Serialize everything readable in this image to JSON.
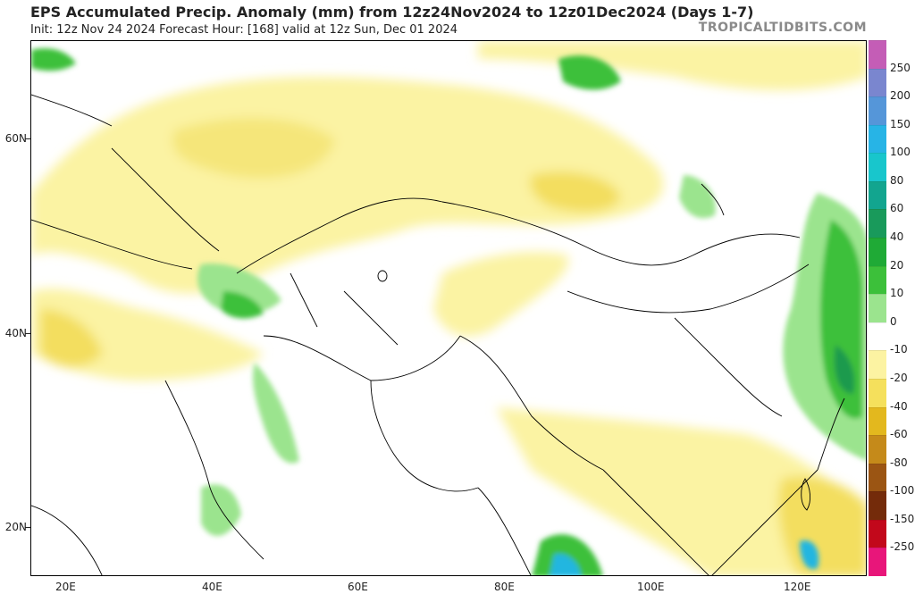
{
  "header": {
    "title": "EPS Accumulated Precip. Anomaly (mm) from 12z24Nov2024 to 12z01Dec2024 (Days 1-7)",
    "subtitle": "Init: 12z Nov 24 2024   Forecast Hour: [168]   valid at 12z Sun, Dec 01 2024",
    "brand": "TROPICALTIDBITS.COM"
  },
  "axes": {
    "lat_labels": [
      "60N",
      "40N",
      "20N"
    ],
    "lon_labels": [
      "20E",
      "40E",
      "60E",
      "80E",
      "100E",
      "120E"
    ]
  },
  "colorbar": {
    "labels": [
      "250",
      "200",
      "150",
      "100",
      "80",
      "60",
      "40",
      "20",
      "10",
      "0",
      "-10",
      "-20",
      "-40",
      "-60",
      "-80",
      "-100",
      "-150",
      "-250"
    ],
    "colors": [
      "#c45db6",
      "#7a86cf",
      "#5596d9",
      "#27b4e6",
      "#18c6cc",
      "#12a58f",
      "#199a5b",
      "#1faa36",
      "#3cc03a",
      "#9be48e",
      "#ffffff",
      "#fcf3a2",
      "#f5e05c",
      "#e3b81e",
      "#c58a1a",
      "#9b5513",
      "#742b0a",
      "#c2081b",
      "#e8167a"
    ]
  },
  "map": {
    "description_colors": {
      "dry_light": "#fbf3a3",
      "dry_mid": "#f3de5e",
      "dry_strong": "#e2b42a",
      "wet_light": "#9be48e",
      "wet_mid": "#3cc03a",
      "wet_strong": "#1a9a4e",
      "wet_extreme": "#22b6e0"
    }
  }
}
